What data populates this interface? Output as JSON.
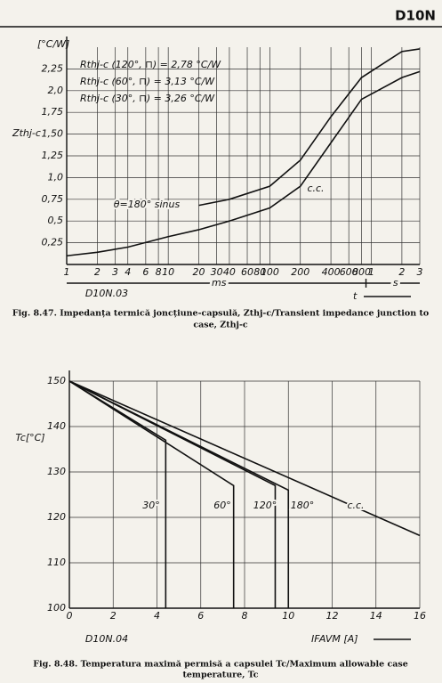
{
  "header": "D10N",
  "chart_data": [
    {
      "type": "line",
      "log_x": true,
      "y_label": "Zthj-c",
      "y_unit": "[°C/W]",
      "x_label": "t",
      "x_range_labels": [
        "ms",
        "s"
      ],
      "code": "D10N.03",
      "caption": [
        "Fig. 8.47. Impedanța termică joncțiune-capsulă, Zthj-c/Transient impedance junction to",
        "case, Zthj-c"
      ],
      "annotations": [
        "Rthj-c (120°, ⊓) = 2,78 °C/W",
        "Rthj-c (60°, ⊓) = 3,13 °C/W",
        "Rthj-c (30°, ⊓) = 3,26 °C/W"
      ],
      "x": [
        1,
        2,
        4,
        10,
        20,
        40,
        100,
        200,
        400,
        800,
        2000,
        3000
      ],
      "series": [
        {
          "name": "θ=180° sinus",
          "color": "#111",
          "values": [
            null,
            null,
            null,
            null,
            0.68,
            0.75,
            0.9,
            1.2,
            1.7,
            2.15,
            2.45,
            2.48
          ]
        },
        {
          "name": "c.c.",
          "color": "#111",
          "values": [
            0.1,
            0.14,
            0.2,
            0.32,
            0.4,
            0.5,
            0.65,
            0.9,
            1.4,
            1.9,
            2.15,
            2.22
          ]
        }
      ],
      "xlim": [
        1,
        3000
      ],
      "xticks": [
        1,
        2,
        3,
        4,
        6,
        8,
        10,
        20,
        30,
        40,
        60,
        80,
        100,
        200,
        400,
        600,
        800,
        {
          "value": 1000,
          "label": "1"
        },
        {
          "value": 2000,
          "label": "2"
        },
        {
          "value": 3000,
          "label": "3"
        }
      ],
      "ylim": [
        0,
        2.5
      ],
      "yticks": [
        {
          "value": 0.25,
          "label": "0,25"
        },
        {
          "value": 0.5,
          "label": "0,5"
        },
        {
          "value": 0.75,
          "label": "0,75"
        },
        {
          "value": 1,
          "label": "1,0"
        },
        {
          "value": 1.25,
          "label": "1,25"
        },
        {
          "value": 1.5,
          "label": "1,50"
        },
        {
          "value": 1.75,
          "label": "1,75"
        },
        {
          "value": 2,
          "label": "2,0"
        },
        {
          "value": 2.25,
          "label": "2,25"
        }
      ],
      "grid": true
    },
    {
      "type": "line",
      "y_label": "Tc[°C]",
      "x_label": "IFAVM [A]",
      "code": "D10N.04",
      "caption": [
        "Fig. 8.48. Temperatura maximă permisă a capsulei Tc/Maximum allowable case",
        "temperature, Tc"
      ],
      "series": [
        {
          "name": "30°",
          "color": "#111",
          "x": [
            0,
            4.4,
            4.4
          ],
          "values": [
            150,
            137,
            100
          ]
        },
        {
          "name": "60°",
          "color": "#111",
          "x": [
            0,
            7.5,
            7.5
          ],
          "values": [
            150,
            127,
            100
          ]
        },
        {
          "name": "120°",
          "color": "#111",
          "x": [
            0,
            9.4,
            9.4
          ],
          "values": [
            150,
            127,
            100
          ]
        },
        {
          "name": "180°",
          "color": "#111",
          "x": [
            0,
            10,
            10
          ],
          "values": [
            150,
            126,
            100
          ]
        },
        {
          "name": "c.c.",
          "color": "#111",
          "x": [
            0,
            16
          ],
          "values": [
            150,
            116
          ]
        }
      ],
      "xlim": [
        0,
        16
      ],
      "xticks": [
        0,
        2,
        4,
        6,
        8,
        10,
        12,
        14,
        16
      ],
      "ylim": [
        100,
        150
      ],
      "yticks": [
        100,
        110,
        120,
        130,
        140,
        150
      ],
      "grid": true
    }
  ]
}
